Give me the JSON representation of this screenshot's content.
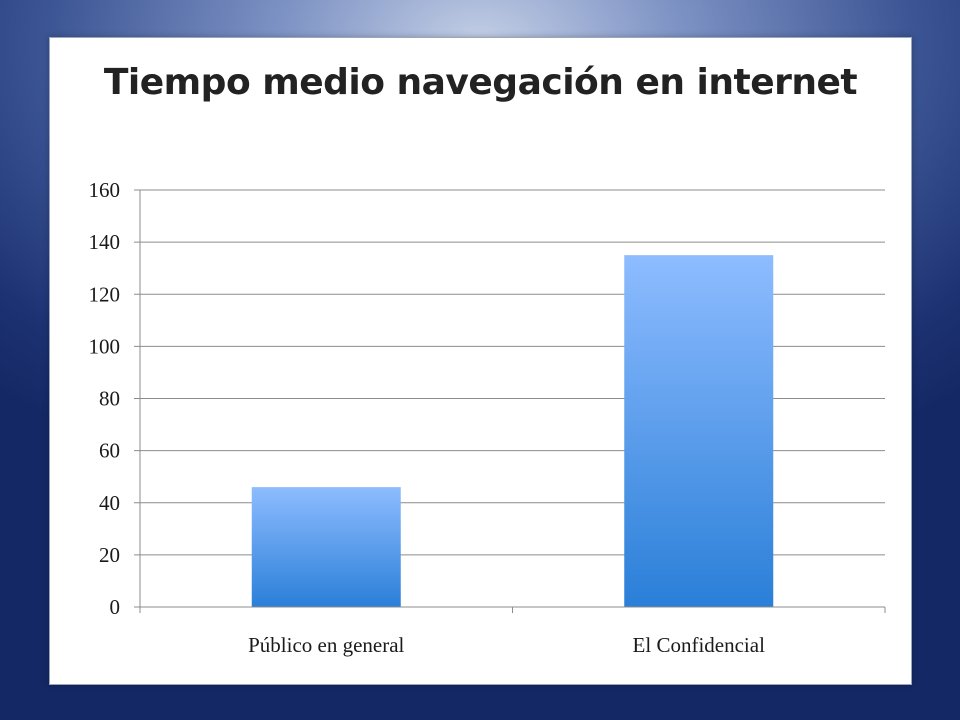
{
  "colors": {
    "bar_top": "#8ebcff",
    "bar_bottom": "#2a7fd8",
    "gridline": "#8c8c8c",
    "axis": "#8c8c8c"
  },
  "chart_data": {
    "type": "bar",
    "title": "Tiempo medio navegación en internet",
    "xlabel": "",
    "ylabel": "",
    "categories": [
      "Público en general",
      "El Confidencial"
    ],
    "values": [
      46,
      135
    ],
    "ylim": [
      0,
      160
    ],
    "yticks": [
      0,
      20,
      40,
      60,
      80,
      100,
      120,
      140,
      160
    ],
    "grid": true,
    "legend": "none"
  }
}
